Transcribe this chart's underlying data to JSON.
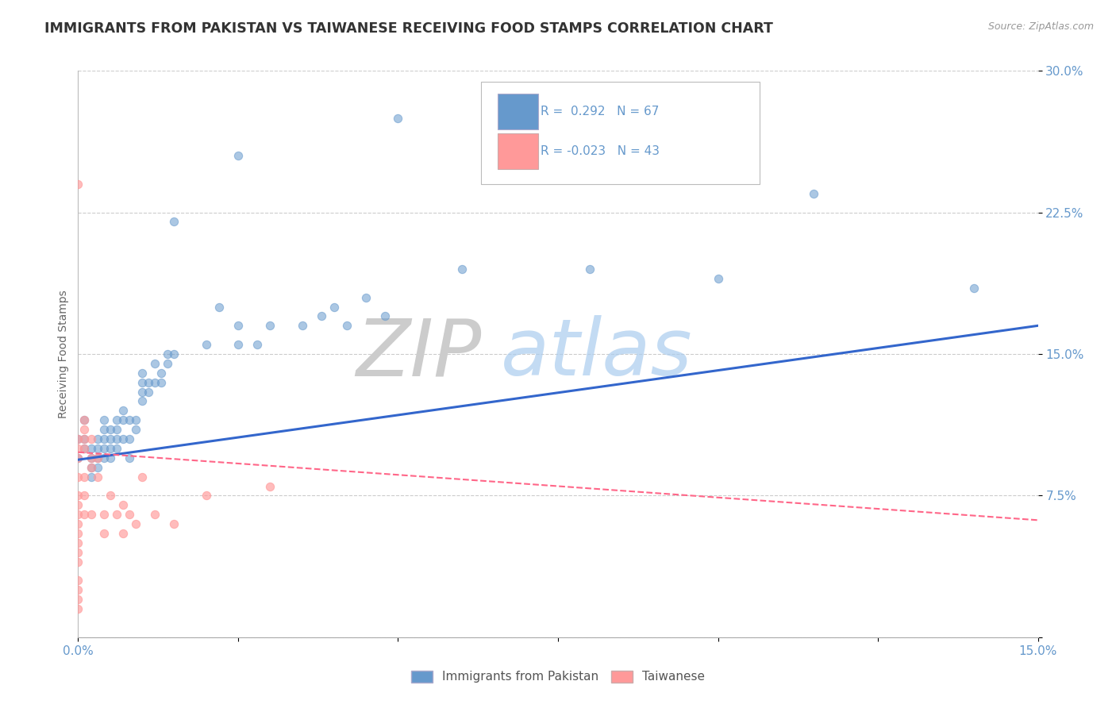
{
  "title": "IMMIGRANTS FROM PAKISTAN VS TAIWANESE RECEIVING FOOD STAMPS CORRELATION CHART",
  "source": "Source: ZipAtlas.com",
  "xlabel": "",
  "ylabel": "Receiving Food Stamps",
  "xlim": [
    0.0,
    0.15
  ],
  "ylim": [
    0.0,
    0.3
  ],
  "xticks": [
    0.0,
    0.025,
    0.05,
    0.075,
    0.1,
    0.125,
    0.15
  ],
  "yticks": [
    0.0,
    0.075,
    0.15,
    0.225,
    0.3
  ],
  "ytick_labels": [
    "",
    "7.5%",
    "15.0%",
    "22.5%",
    "30.0%"
  ],
  "xtick_labels": [
    "0.0%",
    "",
    "",
    "",
    "",
    "",
    "15.0%"
  ],
  "legend_r_pakistan": "0.292",
  "legend_n_pakistan": "67",
  "legend_r_taiwanese": "-0.023",
  "legend_n_taiwanese": "43",
  "blue_color": "#6699CC",
  "pink_color": "#FF9999",
  "blue_line_color": "#3366CC",
  "pink_line_color": "#FF6688",
  "watermark_zip": "ZIP",
  "watermark_atlas": "atlas",
  "background_color": "#FFFFFF",
  "grid_color": "#CCCCCC",
  "title_color": "#333333",
  "axis_color": "#6699CC",
  "pakistan_points": [
    [
      0.0,
      0.105
    ],
    [
      0.0,
      0.095
    ],
    [
      0.001,
      0.115
    ],
    [
      0.001,
      0.105
    ],
    [
      0.001,
      0.1
    ],
    [
      0.002,
      0.1
    ],
    [
      0.002,
      0.095
    ],
    [
      0.002,
      0.09
    ],
    [
      0.002,
      0.085
    ],
    [
      0.003,
      0.105
    ],
    [
      0.003,
      0.1
    ],
    [
      0.003,
      0.095
    ],
    [
      0.003,
      0.09
    ],
    [
      0.004,
      0.115
    ],
    [
      0.004,
      0.11
    ],
    [
      0.004,
      0.105
    ],
    [
      0.004,
      0.1
    ],
    [
      0.004,
      0.095
    ],
    [
      0.005,
      0.11
    ],
    [
      0.005,
      0.105
    ],
    [
      0.005,
      0.1
    ],
    [
      0.005,
      0.095
    ],
    [
      0.006,
      0.115
    ],
    [
      0.006,
      0.11
    ],
    [
      0.006,
      0.105
    ],
    [
      0.006,
      0.1
    ],
    [
      0.007,
      0.12
    ],
    [
      0.007,
      0.115
    ],
    [
      0.007,
      0.105
    ],
    [
      0.008,
      0.115
    ],
    [
      0.008,
      0.105
    ],
    [
      0.008,
      0.095
    ],
    [
      0.009,
      0.115
    ],
    [
      0.009,
      0.11
    ],
    [
      0.01,
      0.14
    ],
    [
      0.01,
      0.135
    ],
    [
      0.01,
      0.13
    ],
    [
      0.01,
      0.125
    ],
    [
      0.011,
      0.135
    ],
    [
      0.011,
      0.13
    ],
    [
      0.012,
      0.145
    ],
    [
      0.012,
      0.135
    ],
    [
      0.013,
      0.14
    ],
    [
      0.013,
      0.135
    ],
    [
      0.014,
      0.15
    ],
    [
      0.014,
      0.145
    ],
    [
      0.015,
      0.22
    ],
    [
      0.015,
      0.15
    ],
    [
      0.02,
      0.155
    ],
    [
      0.022,
      0.175
    ],
    [
      0.025,
      0.165
    ],
    [
      0.025,
      0.155
    ],
    [
      0.028,
      0.155
    ],
    [
      0.03,
      0.165
    ],
    [
      0.035,
      0.165
    ],
    [
      0.038,
      0.17
    ],
    [
      0.04,
      0.175
    ],
    [
      0.042,
      0.165
    ],
    [
      0.045,
      0.18
    ],
    [
      0.048,
      0.17
    ],
    [
      0.05,
      0.275
    ],
    [
      0.06,
      0.195
    ],
    [
      0.08,
      0.195
    ],
    [
      0.1,
      0.19
    ],
    [
      0.115,
      0.235
    ],
    [
      0.14,
      0.185
    ],
    [
      0.025,
      0.255
    ]
  ],
  "taiwanese_points": [
    [
      0.0,
      0.105
    ],
    [
      0.0,
      0.1
    ],
    [
      0.0,
      0.095
    ],
    [
      0.0,
      0.085
    ],
    [
      0.0,
      0.075
    ],
    [
      0.0,
      0.07
    ],
    [
      0.0,
      0.065
    ],
    [
      0.0,
      0.06
    ],
    [
      0.0,
      0.055
    ],
    [
      0.0,
      0.05
    ],
    [
      0.0,
      0.045
    ],
    [
      0.0,
      0.04
    ],
    [
      0.0,
      0.03
    ],
    [
      0.0,
      0.025
    ],
    [
      0.0,
      0.02
    ],
    [
      0.0,
      0.015
    ],
    [
      0.0,
      0.24
    ],
    [
      0.001,
      0.115
    ],
    [
      0.001,
      0.11
    ],
    [
      0.001,
      0.105
    ],
    [
      0.001,
      0.1
    ],
    [
      0.001,
      0.085
    ],
    [
      0.001,
      0.075
    ],
    [
      0.001,
      0.065
    ],
    [
      0.002,
      0.105
    ],
    [
      0.002,
      0.095
    ],
    [
      0.002,
      0.09
    ],
    [
      0.002,
      0.065
    ],
    [
      0.003,
      0.095
    ],
    [
      0.003,
      0.085
    ],
    [
      0.004,
      0.065
    ],
    [
      0.004,
      0.055
    ],
    [
      0.005,
      0.075
    ],
    [
      0.006,
      0.065
    ],
    [
      0.007,
      0.07
    ],
    [
      0.007,
      0.055
    ],
    [
      0.008,
      0.065
    ],
    [
      0.009,
      0.06
    ],
    [
      0.01,
      0.085
    ],
    [
      0.012,
      0.065
    ],
    [
      0.015,
      0.06
    ],
    [
      0.02,
      0.075
    ],
    [
      0.03,
      0.08
    ]
  ],
  "pakistan_trendline": [
    [
      0.0,
      0.094
    ],
    [
      0.15,
      0.165
    ]
  ],
  "taiwanese_trendline": [
    [
      0.0,
      0.098
    ],
    [
      0.15,
      0.062
    ]
  ]
}
